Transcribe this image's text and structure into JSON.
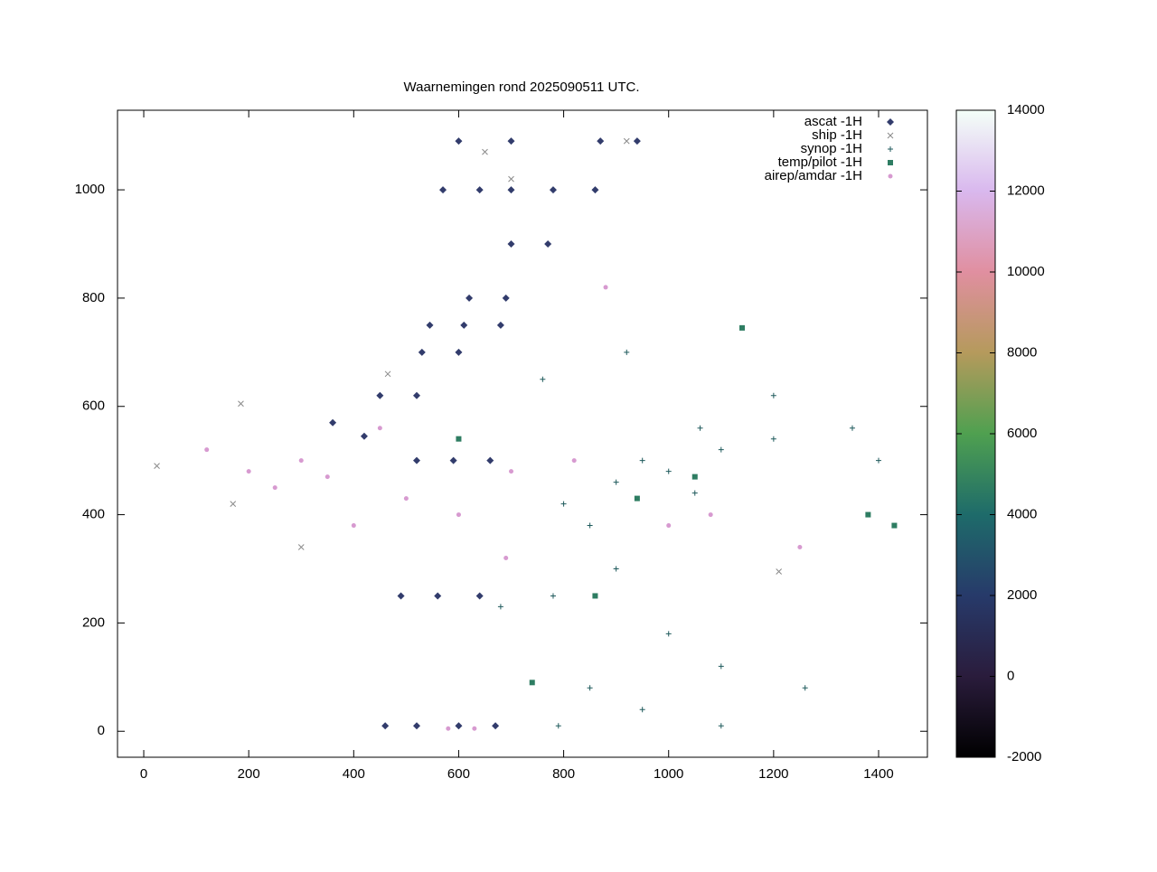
{
  "chart_data": {
    "type": "scatter",
    "title": "Waarnemingen rond 2025090511 UTC.",
    "xlim": [
      -50,
      1493
    ],
    "ylim": [
      -48,
      1147
    ],
    "xticks": [
      0,
      200,
      400,
      600,
      800,
      1000,
      1200,
      1400
    ],
    "yticks": [
      0,
      200,
      400,
      600,
      800,
      1000
    ],
    "colorbar": {
      "lim": [
        -2000,
        14000
      ],
      "ticks": [
        -2000,
        0,
        2000,
        4000,
        6000,
        8000,
        10000,
        12000,
        14000
      ]
    },
    "legend": "top-right",
    "series": [
      {
        "name": "ascat -1H",
        "color": "#323c6c",
        "marker": "diamond",
        "x": [
          460,
          520,
          600,
          670,
          490,
          560,
          640,
          520,
          590,
          660,
          545,
          610,
          680,
          570,
          640,
          700,
          600,
          700,
          870,
          940,
          780,
          860,
          700,
          770,
          620,
          690,
          530,
          600,
          450,
          520,
          360,
          420
        ],
        "y": [
          10,
          10,
          10,
          10,
          250,
          250,
          250,
          500,
          500,
          500,
          750,
          750,
          750,
          1000,
          1000,
          1000,
          1090,
          1090,
          1090,
          1090,
          1000,
          1000,
          900,
          900,
          800,
          800,
          700,
          700,
          620,
          620,
          570,
          545
        ]
      },
      {
        "name": "ship -1H",
        "color": "#8a8a8a",
        "marker": "x",
        "x": [
          25,
          170,
          185,
          1210,
          465,
          650,
          920,
          700,
          300
        ],
        "y": [
          490,
          420,
          605,
          295,
          660,
          1070,
          1090,
          1020,
          340
        ]
      },
      {
        "name": "synop -1H",
        "color": "#1f5a5c",
        "marker": "plus",
        "x": [
          800,
          850,
          900,
          950,
          1000,
          1050,
          900,
          780,
          1100,
          1200,
          1350,
          1400,
          1000,
          1100,
          950,
          1100,
          790,
          850,
          1260,
          760,
          920,
          1200,
          680,
          1060
        ],
        "y": [
          420,
          380,
          460,
          500,
          480,
          440,
          300,
          250,
          520,
          540,
          560,
          500,
          180,
          120,
          40,
          10,
          10,
          80,
          80,
          650,
          700,
          620,
          230,
          560
        ]
      },
      {
        "name": "temp/pilot -1H",
        "color": "#2e7d62",
        "marker": "square",
        "x": [
          1140,
          1380,
          1050,
          860,
          940,
          740,
          600,
          1430
        ],
        "y": [
          745,
          400,
          470,
          250,
          430,
          90,
          540,
          380
        ]
      },
      {
        "name": "airep/amdar -1H",
        "color": "#d79ad0",
        "marker": "dot",
        "x": [
          500,
          350,
          600,
          700,
          820,
          1000,
          1080,
          1250,
          200,
          300,
          400,
          580,
          630,
          690,
          880,
          120,
          250,
          450
        ],
        "y": [
          430,
          470,
          400,
          480,
          500,
          380,
          400,
          340,
          480,
          500,
          380,
          5,
          5,
          320,
          820,
          520,
          450,
          560
        ]
      }
    ]
  }
}
